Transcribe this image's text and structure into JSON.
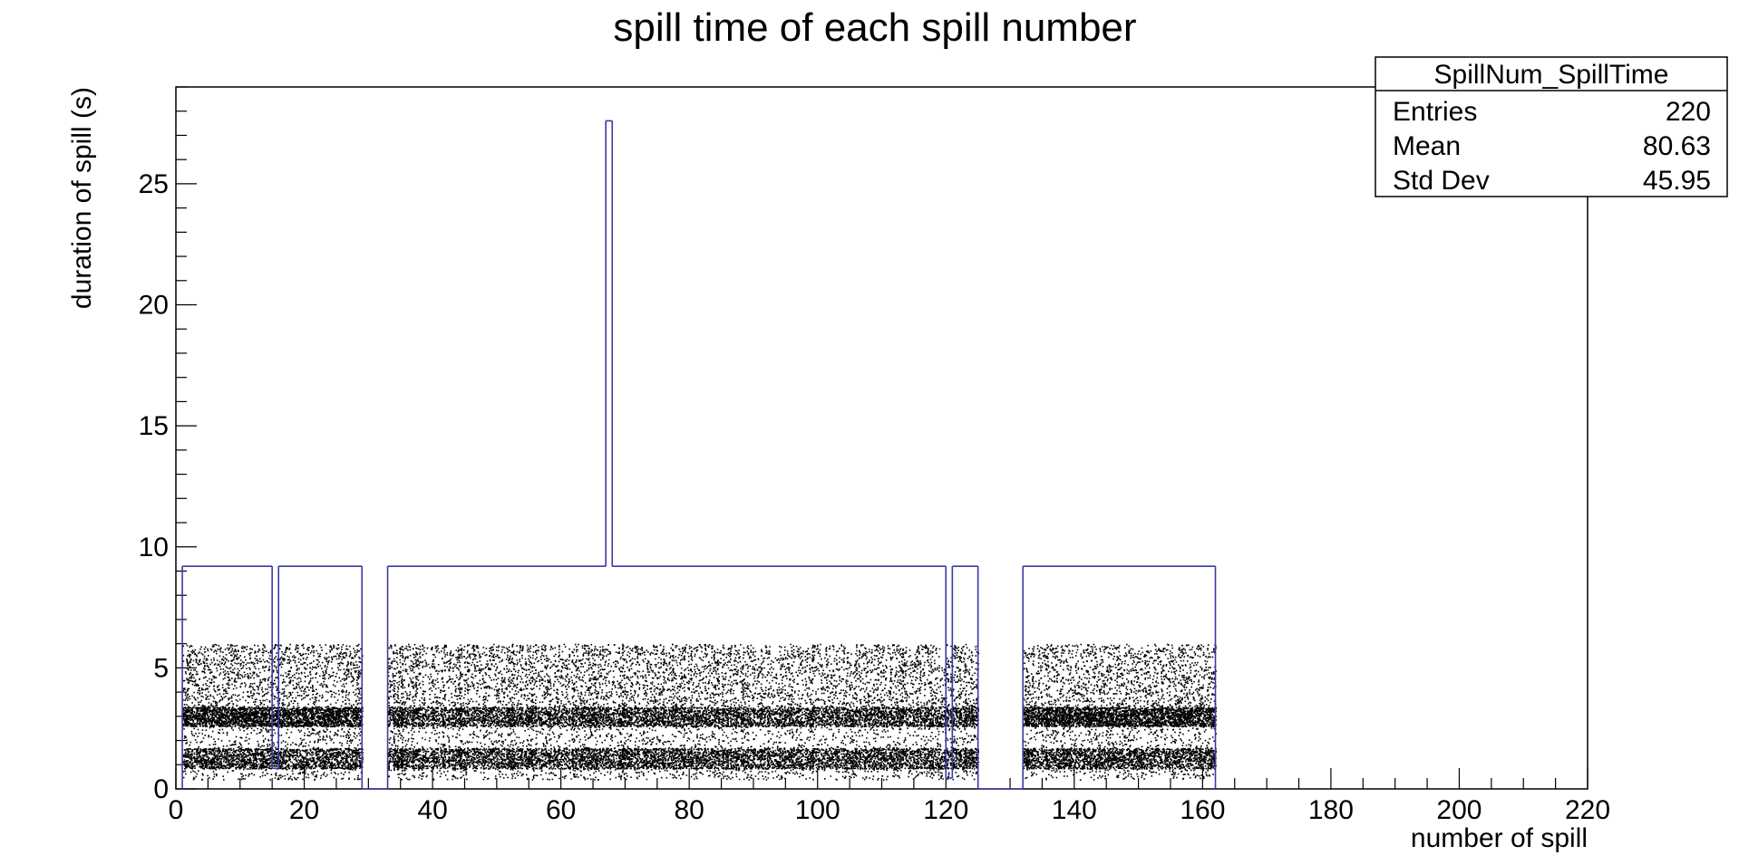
{
  "chart_data": {
    "type": "histogram",
    "title": "spill time of each spill number",
    "xlabel": "number of spill",
    "ylabel": "duration of spill (s)",
    "xlim": [
      0,
      220
    ],
    "ylim": [
      0,
      29
    ],
    "x_ticks": [
      "0",
      "20",
      "40",
      "60",
      "80",
      "100",
      "120",
      "140",
      "160",
      "180",
      "200",
      "220"
    ],
    "y_ticks": [
      "0",
      "5",
      "10",
      "15",
      "20",
      "25"
    ],
    "x_tick_values": [
      0,
      20,
      40,
      60,
      80,
      100,
      120,
      140,
      160,
      180,
      200,
      220
    ],
    "y_tick_values": [
      0,
      5,
      10,
      15,
      20,
      25
    ],
    "histogram_color": "#3a3aa8",
    "histogram_bins": [
      {
        "x0": 1,
        "x1": 15,
        "y": 9.2
      },
      {
        "x0": 15,
        "x1": 16,
        "y": 0.85
      },
      {
        "x0": 16,
        "x1": 29,
        "y": 9.2
      },
      {
        "x0": 29,
        "x1": 33,
        "y": 0
      },
      {
        "x0": 33,
        "x1": 67,
        "y": 9.2
      },
      {
        "x0": 67,
        "x1": 68,
        "y": 27.6
      },
      {
        "x0": 68,
        "x1": 120,
        "y": 9.2
      },
      {
        "x0": 120,
        "x1": 121,
        "y": 0.45
      },
      {
        "x0": 121,
        "x1": 125,
        "y": 9.2
      },
      {
        "x0": 125,
        "x1": 132,
        "y": 0
      },
      {
        "x0": 132,
        "x1": 162,
        "y": 9.2
      }
    ],
    "scatter_density_bands": [
      {
        "ylo": 0.85,
        "yhi": 1.7,
        "density": "high"
      },
      {
        "ylo": 2.6,
        "yhi": 3.4,
        "density": "high"
      },
      {
        "ylo": 0.3,
        "yhi": 6.0,
        "density": "low"
      }
    ],
    "scatter_x_ranges": [
      [
        1,
        29
      ],
      [
        33,
        125
      ],
      [
        132,
        162
      ]
    ]
  },
  "stats_box": {
    "name": "SpillNum_SpillTime",
    "entries_label": "Entries",
    "entries_value": "220",
    "mean_label": "Mean",
    "mean_value": "80.63",
    "stddev_label": "Std Dev",
    "stddev_value": "45.95"
  }
}
